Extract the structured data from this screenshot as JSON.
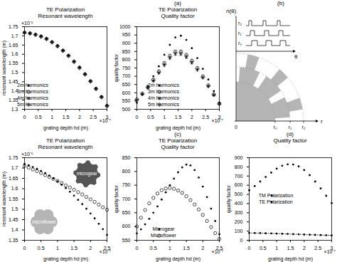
{
  "chart_data": [
    {
      "type": "scatter",
      "title": "TE Polarization",
      "subtitle": "Resonant wavelength",
      "xlabel": "grating depth hd (m)",
      "ylabel": "resonant wavelength (m)",
      "annotations": {
        "x_axis": "×10⁻⁷",
        "y_axis": "×10⁻⁶"
      },
      "x": [
        0,
        0.2,
        0.4,
        0.6,
        0.8,
        1,
        1.2,
        1.4,
        1.6,
        1.8,
        2,
        2.2,
        2.4,
        2.6,
        2.8,
        3
      ],
      "xlim": [
        0,
        3
      ],
      "xticks": [
        0,
        0.5,
        1,
        1.5,
        2,
        2.5,
        3
      ],
      "ylim": [
        1.3,
        1.75
      ],
      "yticks": [
        1.3,
        1.35,
        1.4,
        1.45,
        1.5,
        1.55,
        1.6,
        1.65,
        1.7,
        1.75
      ],
      "legend": "bottom-left",
      "series": [
        {
          "name": "2m harmonics",
          "color": "#000000",
          "marker": "dot",
          "values": [
            1.72,
            1.716,
            1.709,
            1.699,
            1.686,
            1.668,
            1.647,
            1.622,
            1.594,
            1.562,
            1.53,
            1.494,
            1.456,
            1.415,
            1.37,
            1.322
          ]
        },
        {
          "name": "3m harmonics",
          "color": "#000000",
          "marker": "circle",
          "values": [
            1.718,
            1.714,
            1.707,
            1.697,
            1.684,
            1.666,
            1.645,
            1.62,
            1.592,
            1.56,
            1.527,
            1.491,
            1.453,
            1.412,
            1.367,
            1.319
          ]
        },
        {
          "name": "4m harmonics",
          "color": "#000000",
          "marker": "asterisk",
          "values": [
            1.717,
            1.713,
            1.706,
            1.696,
            1.683,
            1.665,
            1.644,
            1.619,
            1.591,
            1.559,
            1.526,
            1.49,
            1.452,
            1.411,
            1.366,
            1.318
          ]
        },
        {
          "name": "5m harmonics",
          "color": "#000000",
          "marker": "plus",
          "values": [
            1.717,
            1.713,
            1.706,
            1.696,
            1.683,
            1.665,
            1.644,
            1.619,
            1.591,
            1.559,
            1.526,
            1.49,
            1.452,
            1.411,
            1.366,
            1.318
          ]
        }
      ]
    },
    {
      "type": "scatter",
      "title": "TE Polarization",
      "subtitle": "Quality factor",
      "xlabel": "grating depth hd (m)",
      "ylabel": "quality factor",
      "annotations": {
        "panel": "(a)",
        "x_axis": "×10⁻⁷"
      },
      "x": [
        0,
        0.2,
        0.4,
        0.6,
        0.8,
        1,
        1.2,
        1.4,
        1.6,
        1.8,
        2,
        2.2,
        2.4,
        2.6,
        2.8,
        3
      ],
      "xlim": [
        0,
        3
      ],
      "xticks": [
        0,
        0.5,
        1,
        1.5,
        2,
        2.5,
        3
      ],
      "ylim": [
        500,
        1000
      ],
      "yticks": [
        500,
        550,
        600,
        650,
        700,
        750,
        800,
        850,
        900,
        950,
        1000
      ],
      "legend": "bottom",
      "series": [
        {
          "name": "2m harmonics",
          "color": "#000000",
          "marker": "dot",
          "values": [
            540,
            590,
            640,
            700,
            760,
            830,
            890,
            935,
            945,
            920,
            870,
            810,
            745,
            680,
            610,
            540
          ]
        },
        {
          "name": "3m harmonics",
          "color": "#000000",
          "marker": "circle",
          "values": [
            560,
            595,
            635,
            680,
            730,
            780,
            825,
            850,
            850,
            830,
            795,
            750,
            700,
            645,
            590,
            535
          ]
        },
        {
          "name": "4m harmonics",
          "color": "#000000",
          "marker": "asterisk",
          "values": [
            555,
            590,
            628,
            670,
            718,
            765,
            808,
            832,
            832,
            813,
            780,
            737,
            690,
            638,
            585,
            530
          ]
        },
        {
          "name": "5m harmonics",
          "color": "#000000",
          "marker": "plus",
          "values": [
            558,
            593,
            632,
            676,
            725,
            773,
            817,
            842,
            842,
            822,
            788,
            744,
            695,
            642,
            588,
            532
          ]
        }
      ]
    },
    {
      "type": "scatter",
      "title": "TE Polarization",
      "subtitle": "Resonant wavelength",
      "xlabel": "grating depth hd (m)",
      "ylabel": "resonant wavelength (m)",
      "annotations": {
        "x_axis": "×10⁻⁷",
        "y_axis": "×10⁻⁶"
      },
      "x": [
        0,
        0.125,
        0.25,
        0.375,
        0.5,
        0.625,
        0.75,
        0.875,
        1,
        1.125,
        1.25,
        1.375,
        1.5,
        1.625,
        1.75,
        1.875,
        2,
        2.125,
        2.25,
        2.375,
        2.5
      ],
      "xlim": [
        0,
        2.5
      ],
      "xticks": [
        0,
        0.5,
        1,
        1.5,
        2,
        2.5
      ],
      "ylim": [
        1.35,
        1.75
      ],
      "yticks": [
        1.35,
        1.4,
        1.45,
        1.5,
        1.55,
        1.6,
        1.65,
        1.7,
        1.75
      ],
      "series": [
        {
          "name": "microgear",
          "color": "#000000",
          "marker": "dot",
          "values": [
            1.72,
            1.713,
            1.705,
            1.696,
            1.686,
            1.675,
            1.663,
            1.65,
            1.635,
            1.619,
            1.603,
            1.585,
            1.566,
            1.546,
            1.525,
            1.503,
            1.48,
            1.456,
            1.43,
            1.404,
            1.376
          ]
        },
        {
          "name": "microflower",
          "color": "#000000",
          "marker": "circle",
          "values": [
            1.71,
            1.702,
            1.693,
            1.685,
            1.676,
            1.666,
            1.657,
            1.647,
            1.637,
            1.627,
            1.616,
            1.606,
            1.595,
            1.583,
            1.572,
            1.56,
            1.548,
            1.536,
            1.523,
            1.51,
            1.498
          ]
        }
      ]
    },
    {
      "type": "scatter",
      "title": "TE Polarization",
      "subtitle": "Quality factor",
      "xlabel": "grating depth hd (m)",
      "ylabel": "quality factor",
      "annotations": {
        "panel": "(c)",
        "x_axis": "×10⁻⁷"
      },
      "x": [
        0,
        0.125,
        0.25,
        0.375,
        0.5,
        0.625,
        0.75,
        0.875,
        1,
        1.125,
        1.25,
        1.375,
        1.5,
        1.625,
        1.75,
        1.875,
        2,
        2.125,
        2.25,
        2.375,
        2.5
      ],
      "xlim": [
        0,
        2.5
      ],
      "xticks": [
        0,
        0.5,
        1,
        1.5,
        2,
        2.5
      ],
      "ylim": [
        550,
        850
      ],
      "yticks": [
        550,
        600,
        650,
        700,
        750,
        800,
        850
      ],
      "legend": "bottom",
      "series": [
        {
          "name": "Microgear",
          "color": "#000000",
          "marker": "dot",
          "values": [
            575,
            590,
            608,
            628,
            650,
            673,
            698,
            724,
            750,
            774,
            797,
            815,
            825,
            822,
            805,
            778,
            745,
            707,
            665,
            620,
            572
          ]
        },
        {
          "name": "Microflower",
          "color": "#000000",
          "marker": "circle",
          "values": [
            600,
            632,
            660,
            684,
            704,
            720,
            732,
            738,
            740,
            737,
            731,
            722,
            710,
            696,
            680,
            662,
            642,
            620,
            598,
            576,
            555
          ]
        }
      ]
    },
    {
      "type": "scatter",
      "title": "Quality factor",
      "xlabel": "grating depth hd (m)",
      "ylabel": "quality factor",
      "annotations": {
        "panel": "(d)",
        "x_axis": "×10⁻⁷"
      },
      "x": [
        0,
        0.2,
        0.4,
        0.6,
        0.8,
        1,
        1.2,
        1.4,
        1.6,
        1.8,
        2,
        2.2,
        2.4,
        2.6,
        2.8,
        3
      ],
      "xlim": [
        0,
        3
      ],
      "xticks": [
        0,
        0.5,
        1,
        1.5,
        2,
        2.5,
        3
      ],
      "ylim": [
        0,
        900
      ],
      "yticks": [
        0,
        100,
        200,
        300,
        400,
        500,
        600,
        700,
        800,
        900
      ],
      "legend": "center",
      "series": [
        {
          "name": "TM Polarization",
          "color": "#000000",
          "type": "line",
          "line_style": "dotted",
          "marker": "dot",
          "values": [
            80,
            79,
            78,
            76,
            75,
            73,
            71,
            69,
            67,
            65,
            63,
            61,
            59,
            57,
            55,
            53
          ]
        },
        {
          "name": "TE Polarization",
          "color": "#000000",
          "marker": "dot",
          "values": [
            545,
            590,
            640,
            690,
            738,
            780,
            812,
            828,
            826,
            805,
            765,
            710,
            640,
            565,
            485,
            405
          ]
        }
      ]
    }
  ],
  "diagram": {
    "label": "(b)",
    "n_label": "n(θ)",
    "theta_label": "θ",
    "profiles": [
      "r₂",
      "r₁",
      "r₀"
    ],
    "origin": "0",
    "radii": [
      "r₀",
      "r₁",
      "r₂"
    ],
    "r_label": "r"
  }
}
